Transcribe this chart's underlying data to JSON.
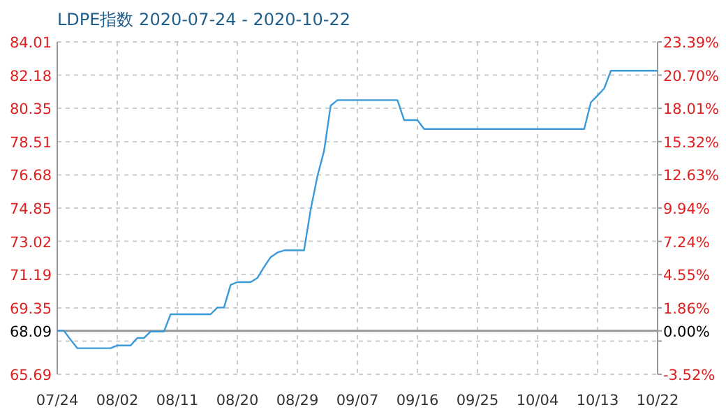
{
  "chart_data": {
    "type": "line",
    "title": "LDPE指数 2020-07-24 - 2020-10-22",
    "x": [
      "2020-07-24",
      "2020-07-25",
      "2020-07-26",
      "2020-07-27",
      "2020-08-01",
      "2020-08-02",
      "2020-08-04",
      "2020-08-05",
      "2020-08-06",
      "2020-08-07",
      "2020-08-09",
      "2020-08-10",
      "2020-08-16",
      "2020-08-17",
      "2020-08-18",
      "2020-08-19",
      "2020-08-20",
      "2020-08-22",
      "2020-08-23",
      "2020-08-24",
      "2020-08-25",
      "2020-08-26",
      "2020-08-27",
      "2020-08-30",
      "2020-08-31",
      "2020-09-01",
      "2020-09-02",
      "2020-09-03",
      "2020-09-04",
      "2020-09-13",
      "2020-09-14",
      "2020-09-16",
      "2020-09-17",
      "2020-10-11",
      "2020-10-12",
      "2020-10-13",
      "2020-10-14",
      "2020-10-15",
      "2020-10-22"
    ],
    "series": [
      {
        "color": "#3a9ad9",
        "values": [
          68.09,
          68.09,
          67.6,
          67.13,
          67.13,
          67.28,
          67.28,
          67.69,
          67.69,
          68.05,
          68.05,
          69.0,
          69.0,
          69.37,
          69.37,
          70.62,
          70.77,
          70.77,
          71.0,
          71.6,
          72.15,
          72.4,
          72.52,
          72.52,
          74.78,
          76.6,
          78.0,
          80.5,
          80.8,
          80.8,
          79.7,
          79.7,
          79.21,
          79.21,
          80.68,
          81.05,
          81.45,
          82.42,
          82.42
        ]
      }
    ],
    "xlim": [
      "2020-07-24",
      "2020-10-22"
    ],
    "xticks": [
      {
        "value": "2020-07-24",
        "label": "07/24"
      },
      {
        "value": "2020-08-02",
        "label": "08/02"
      },
      {
        "value": "2020-08-11",
        "label": "08/11"
      },
      {
        "value": "2020-08-20",
        "label": "08/20"
      },
      {
        "value": "2020-08-29",
        "label": "08/29"
      },
      {
        "value": "2020-09-07",
        "label": "09/07"
      },
      {
        "value": "2020-09-16",
        "label": "09/16"
      },
      {
        "value": "2020-09-25",
        "label": "09/25"
      },
      {
        "value": "2020-10-04",
        "label": "10/04"
      },
      {
        "value": "2020-10-13",
        "label": "10/13"
      },
      {
        "value": "2020-10-22",
        "label": "10/22"
      }
    ],
    "ylim": [
      65.69,
      84.01
    ],
    "yticks": [
      65.69,
      {
        "value": 67.52,
        "label": null
      },
      68.09,
      69.35,
      71.19,
      73.02,
      74.85,
      76.68,
      78.51,
      80.35,
      82.18,
      84.01
    ],
    "y2lim": [
      -3.52,
      23.39
    ],
    "y2ticks": [
      {
        "value": -3.52,
        "label": "-3.52%"
      },
      {
        "value": -0.83,
        "label": null
      },
      {
        "value": 0,
        "label": "0.00%"
      },
      {
        "value": 1.86,
        "label": "1.86%"
      },
      {
        "value": 4.55,
        "label": "4.55%"
      },
      {
        "value": 7.24,
        "label": "7.24%"
      },
      {
        "value": 9.94,
        "label": "9.94%"
      },
      {
        "value": 12.63,
        "label": "12.63%"
      },
      {
        "value": 15.32,
        "label": "15.32%"
      },
      {
        "value": 18.01,
        "label": "18.01%"
      },
      {
        "value": 20.7,
        "label": "20.70%"
      },
      {
        "value": 23.39,
        "label": "23.39%"
      }
    ],
    "ref_lines": [
      {
        "axis": "y",
        "value": 68.09,
        "color": "#999999"
      }
    ],
    "grid": true,
    "line_style": "solid",
    "marker": "none"
  }
}
